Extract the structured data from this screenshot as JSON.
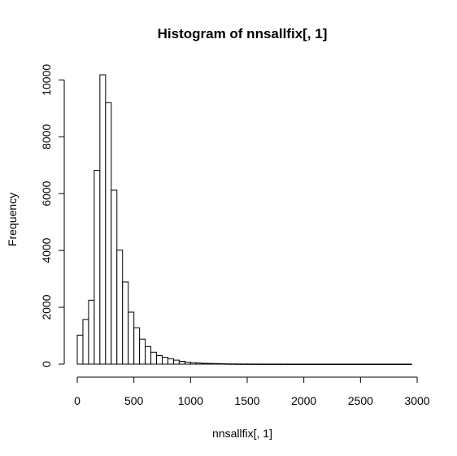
{
  "chart_data": {
    "type": "bar",
    "title": "Histogram of nnsallfix[, 1]",
    "xlabel": "nnsallfix[, 1]",
    "ylabel": "Frequency",
    "bin_width": 50,
    "bin_start": 0,
    "values": [
      1020,
      1570,
      2250,
      6820,
      10180,
      9200,
      6120,
      4010,
      2890,
      1830,
      1280,
      880,
      620,
      420,
      300,
      240,
      190,
      140,
      100,
      70,
      50,
      40,
      30,
      25,
      20,
      15,
      10,
      8,
      6,
      5,
      4,
      3,
      3,
      2,
      2,
      2,
      2,
      1,
      1,
      1,
      1,
      1,
      1,
      1,
      1,
      1,
      1,
      1,
      1,
      1,
      1,
      1,
      1,
      1,
      1,
      1,
      1,
      1,
      1
    ],
    "xlim": [
      0,
      3000
    ],
    "ylim": [
      0,
      10180
    ],
    "x_ticks": [
      0,
      500,
      1000,
      1500,
      2000,
      2500,
      3000
    ],
    "y_ticks": [
      0,
      2000,
      4000,
      6000,
      8000,
      10000
    ],
    "grid": false
  }
}
